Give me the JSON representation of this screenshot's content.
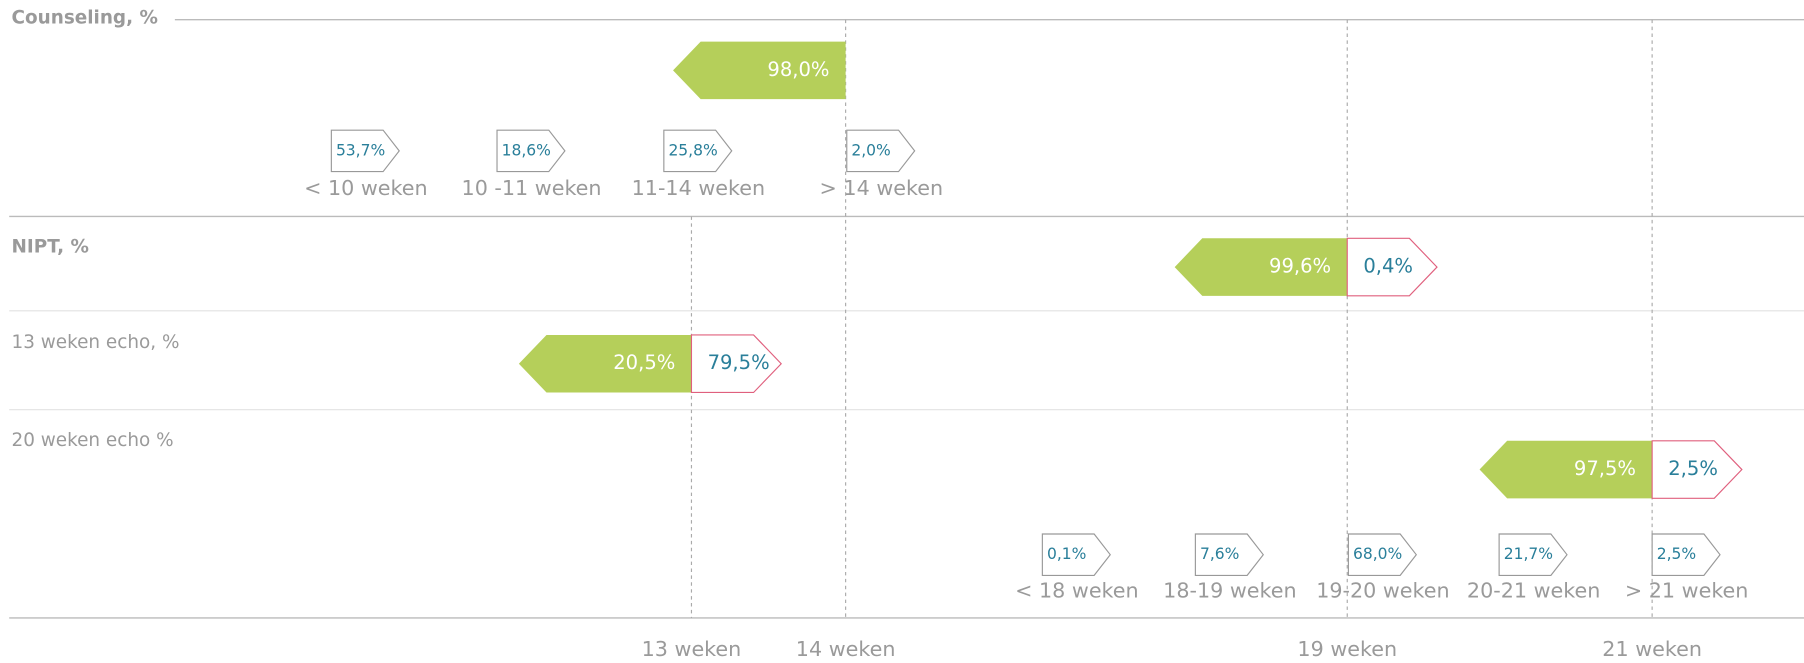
{
  "rows": [
    {
      "title": "Counseling, %",
      "main": {
        "green": "98,0%"
      },
      "breakdown": [
        {
          "value": "53,7%",
          "label": "< 10 weken"
        },
        {
          "value": "18,6%",
          "label": "10 -11 weken"
        },
        {
          "value": "25,8%",
          "label": "11-14 weken"
        },
        {
          "value": "2,0%",
          "label": "> 14 weken"
        }
      ]
    },
    {
      "title": "NIPT, %",
      "main": {
        "green": "99,6%",
        "pink": "0,4%"
      }
    },
    {
      "title": "13 weken echo, %",
      "main": {
        "green": "20,5%",
        "pink": "79,5%"
      }
    },
    {
      "title": "20 weken echo %",
      "main": {
        "green": "97,5%",
        "pink": "2,5%"
      },
      "breakdown": [
        {
          "value": "0,1%",
          "label": "< 18 weken"
        },
        {
          "value": "7,6%",
          "label": "18-19 weken"
        },
        {
          "value": "68,0%",
          "label": "19-20 weken"
        },
        {
          "value": "21,7%",
          "label": "20-21 weken"
        },
        {
          "value": "2,5%",
          "label": "> 21 weken"
        }
      ]
    }
  ],
  "axis": [
    "13 weken",
    "14 weken",
    "19 weken",
    "21 weken"
  ]
}
